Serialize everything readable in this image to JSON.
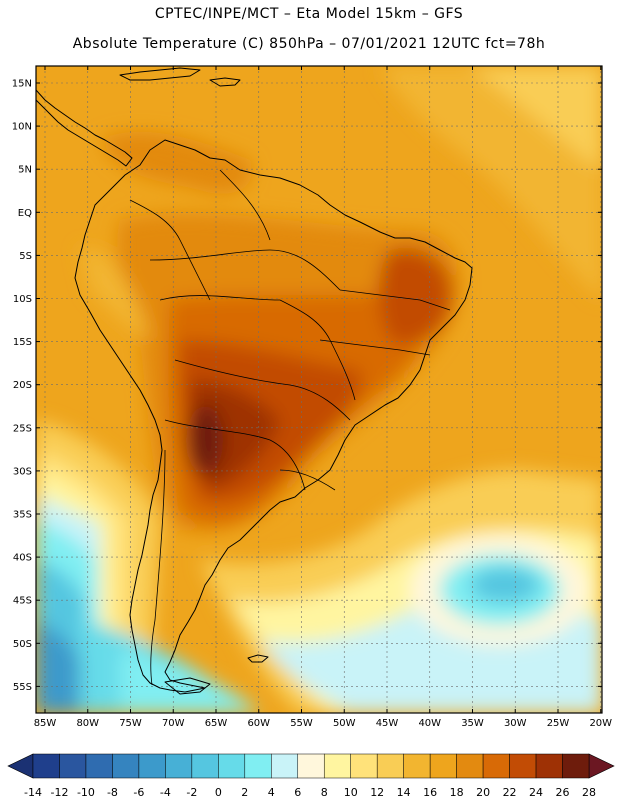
{
  "header": {
    "title_line1": "CPTEC/INPE/MCT –  Eta Model 15km – GFS",
    "title_line2": "Absolute Temperature (C) 850hPa – 07/01/2021 12UTC fct=78h"
  },
  "map": {
    "lat_labels": [
      "15N",
      "10N",
      "5N",
      "EQ",
      "5S",
      "10S",
      "15S",
      "20S",
      "25S",
      "30S",
      "35S",
      "40S",
      "45S",
      "50S",
      "55S"
    ],
    "lon_labels": [
      "85W",
      "80W",
      "75W",
      "70W",
      "65W",
      "60W",
      "55W",
      "50W",
      "45W",
      "40W",
      "35W",
      "30W",
      "25W",
      "20W"
    ]
  },
  "colorbar": {
    "labels": [
      "-14",
      "-12",
      "-10",
      "-8",
      "-6",
      "-4",
      "-2",
      "0",
      "2",
      "4",
      "6",
      "8",
      "10",
      "12",
      "14",
      "16",
      "18",
      "20",
      "22",
      "24",
      "26",
      "28"
    ],
    "colors": [
      "#1f3f8c",
      "#2a569f",
      "#2f6cb0",
      "#3584bf",
      "#3c9acb",
      "#47b0d6",
      "#55c6e0",
      "#66dbe9",
      "#80eef2",
      "#c9f3f8",
      "#fff7dc",
      "#fff5a0",
      "#ffe27a",
      "#f9cd55",
      "#f2b530",
      "#eea51d",
      "#e38a10",
      "#d86a06",
      "#c24c05",
      "#9e3105",
      "#6e1c0c"
    ],
    "low_color": "#1b3173",
    "high_color": "#6b1722"
  }
}
